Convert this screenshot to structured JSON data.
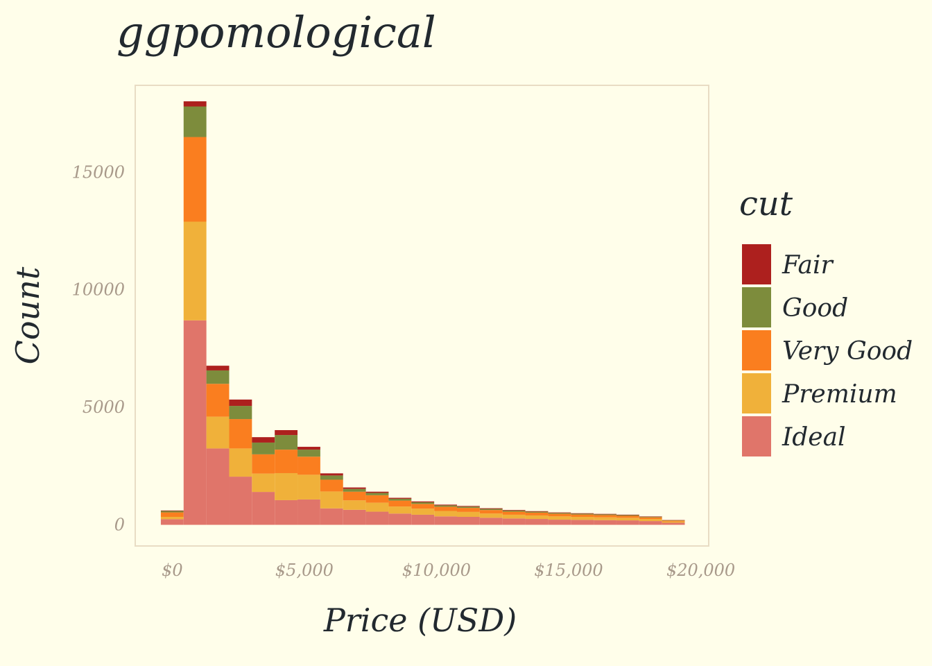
{
  "colors": {
    "background": "#fffeea",
    "panel_border": "#e8dcc4",
    "text": "#22292f",
    "tick_text": "#a8998a"
  },
  "chart_data": {
    "type": "bar",
    "stacked": true,
    "title": "ggpomological",
    "xlabel": "Price (USD)",
    "ylabel": "Count",
    "x_ticks": [
      {
        "value": 0,
        "label": "$0"
      },
      {
        "value": 5000,
        "label": "$5,000"
      },
      {
        "value": 10000,
        "label": "$10,000"
      },
      {
        "value": 15000,
        "label": "$15,000"
      },
      {
        "value": 20000,
        "label": "$20,000"
      }
    ],
    "y_ticks": [
      {
        "value": 0,
        "label": "0"
      },
      {
        "value": 5000,
        "label": "5000"
      },
      {
        "value": 10000,
        "label": "10000"
      },
      {
        "value": 15000,
        "label": "15000"
      }
    ],
    "xlim": [
      -1400,
      20300
    ],
    "ylim": [
      -900,
      18700
    ],
    "grid": false,
    "legend_title": "cut",
    "legend_position": "right",
    "bin_width": 862,
    "bin_centers": [
      0,
      862,
      1724,
      2586,
      3448,
      4310,
      5172,
      6034,
      6896,
      7758,
      8620,
      9482,
      10344,
      11206,
      12068,
      12930,
      13792,
      14654,
      15516,
      16378,
      17240,
      18102,
      18964
    ],
    "series": [
      {
        "name": "Ideal",
        "color": "#e0756a",
        "values": [
          240,
          8700,
          3250,
          2050,
          1400,
          1050,
          1080,
          700,
          640,
          560,
          480,
          430,
          360,
          340,
          300,
          270,
          250,
          220,
          210,
          200,
          190,
          160,
          90
        ]
      },
      {
        "name": "Premium",
        "color": "#f0b13a",
        "values": [
          100,
          4200,
          1350,
          1200,
          780,
          1150,
          1050,
          720,
          400,
          380,
          300,
          260,
          230,
          210,
          180,
          160,
          150,
          140,
          130,
          120,
          110,
          90,
          50
        ]
      },
      {
        "name": "Very Good",
        "color": "#fa7e1f",
        "values": [
          190,
          3600,
          1400,
          1250,
          820,
          1000,
          770,
          500,
          370,
          320,
          250,
          200,
          180,
          170,
          150,
          130,
          120,
          110,
          100,
          95,
          85,
          70,
          40
        ]
      },
      {
        "name": "Good",
        "color": "#7d8c3c",
        "values": [
          60,
          1300,
          570,
          560,
          500,
          620,
          300,
          180,
          120,
          100,
          80,
          70,
          60,
          55,
          50,
          45,
          40,
          38,
          35,
          33,
          30,
          25,
          15
        ]
      },
      {
        "name": "Fair",
        "color": "#ad201e",
        "values": [
          20,
          220,
          200,
          270,
          230,
          210,
          120,
          90,
          60,
          50,
          40,
          35,
          30,
          28,
          26,
          24,
          22,
          20,
          19,
          18,
          17,
          15,
          10
        ]
      }
    ],
    "legend_order": [
      "Fair",
      "Good",
      "Very Good",
      "Premium",
      "Ideal"
    ]
  }
}
